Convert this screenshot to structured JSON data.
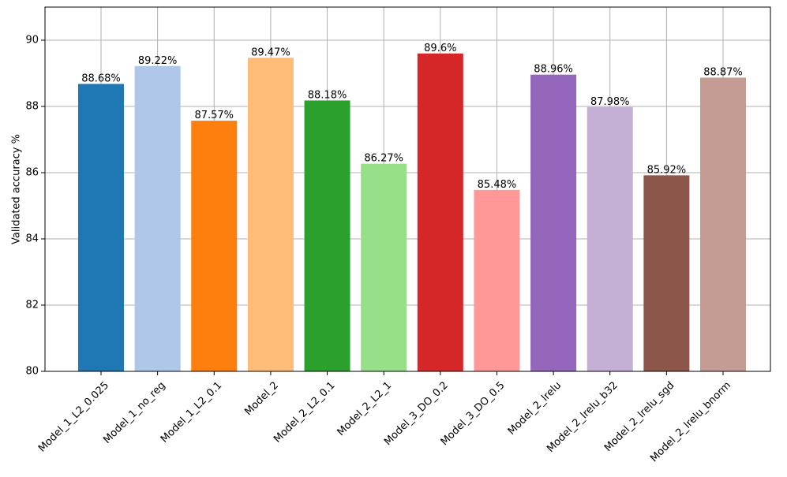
{
  "chart_data": {
    "type": "bar",
    "xlabel": "",
    "ylabel": "Validated accuracy %",
    "ylim": [
      80,
      91
    ],
    "yticks": [
      80,
      82,
      84,
      86,
      88,
      90
    ],
    "grid": true,
    "legend": "none",
    "x_tick_rotation_deg": 45,
    "categories": [
      "Model_1_L2_0.025",
      "Model_1_no_reg",
      "Model_1_L2_0.1",
      "Model_2",
      "Model_2_L2_0.1",
      "Model_2_L2_1",
      "Model_3_DO_0.2",
      "Model_3_DO_0.5",
      "Model_2_lrelu",
      "Model_2_lrelu_b32",
      "Model_2_lrelu_sgd",
      "Model_2_lrelu_bnorm"
    ],
    "values": [
      88.68,
      89.22,
      87.57,
      89.47,
      88.18,
      86.27,
      89.6,
      85.48,
      88.96,
      87.98,
      85.92,
      88.87
    ],
    "data_labels": [
      "88.68%",
      "89.22%",
      "87.57%",
      "89.47%",
      "88.18%",
      "86.27%",
      "89.6%",
      "85.48%",
      "88.96%",
      "87.98%",
      "85.92%",
      "88.87%"
    ],
    "colors": [
      "#1f77b4",
      "#aec7e8",
      "#ff7f0e",
      "#ffbb78",
      "#2ca02c",
      "#98df8a",
      "#d62728",
      "#ff9896",
      "#9467bd",
      "#c5b0d5",
      "#8c564b",
      "#c49c94"
    ],
    "grid_color": "#b0b0b0",
    "axis_color": "#000000"
  }
}
